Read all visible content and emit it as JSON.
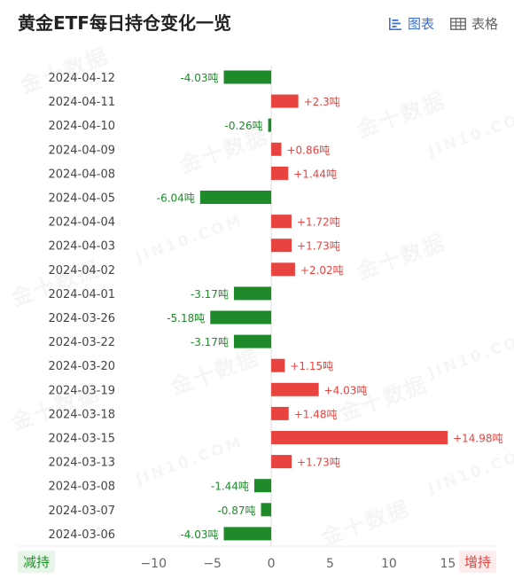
{
  "header": {
    "title": "黄金ETF每日持仓变化一览",
    "tabs": [
      {
        "label": "图表",
        "icon": "chart-icon",
        "active": true
      },
      {
        "label": "表格",
        "icon": "table-icon",
        "active": false
      }
    ]
  },
  "watermark": {
    "cn": "金十数据",
    "en": "JIN10.COM"
  },
  "legend": {
    "negative_label": "减持",
    "positive_label": "增持"
  },
  "colors": {
    "positive": "#e8433f",
    "negative": "#1e8a2a",
    "axis": "#dddddd"
  },
  "chart_data": {
    "type": "bar",
    "orientation": "horizontal",
    "categories": [
      "2024-04-12",
      "2024-04-11",
      "2024-04-10",
      "2024-04-09",
      "2024-04-08",
      "2024-04-05",
      "2024-04-04",
      "2024-04-03",
      "2024-04-02",
      "2024-04-01",
      "2024-03-26",
      "2024-03-22",
      "2024-03-20",
      "2024-03-19",
      "2024-03-18",
      "2024-03-15",
      "2024-03-13",
      "2024-03-08",
      "2024-03-07",
      "2024-03-06"
    ],
    "values": [
      -4.03,
      2.3,
      -0.26,
      0.86,
      1.44,
      -6.04,
      1.72,
      1.73,
      2.02,
      -3.17,
      -5.18,
      -3.17,
      1.15,
      4.03,
      1.48,
      14.98,
      1.73,
      -1.44,
      -0.87,
      -4.03
    ],
    "value_labels": [
      "-4.03吨",
      "+2.3吨",
      "-0.26吨",
      "+0.86吨",
      "+1.44吨",
      "-6.04吨",
      "+1.72吨",
      "+1.73吨",
      "+2.02吨",
      "-3.17吨",
      "-5.18吨",
      "-3.17吨",
      "+1.15吨",
      "+4.03吨",
      "+1.48吨",
      "+14.98吨",
      "+1.73吨",
      "-1.44吨",
      "-0.87吨",
      "-4.03吨"
    ],
    "xticks": [
      -10,
      -5,
      0,
      5,
      10,
      15
    ],
    "xtick_labels": [
      "−10",
      "−5",
      "0",
      "5",
      "10",
      "15"
    ],
    "xlim": [
      -12.5,
      15.5
    ],
    "grid": false
  }
}
